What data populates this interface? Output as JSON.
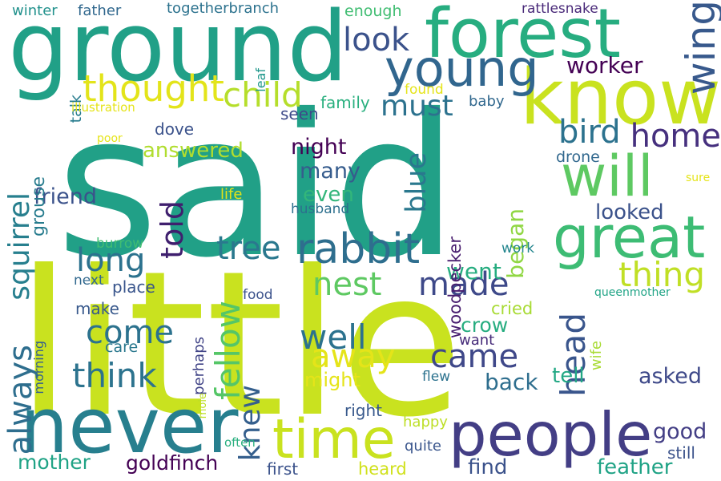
{
  "words": [
    {
      "text": "said",
      "color": "#21a087"
    },
    {
      "text": "little",
      "color": "#c9e21f"
    },
    {
      "text": "ground",
      "color": "#21a087"
    },
    {
      "text": "forest",
      "color": "#27ad80"
    },
    {
      "text": "know",
      "color": "#c9e21f"
    },
    {
      "text": "never",
      "color": "#277f8e"
    },
    {
      "text": "people",
      "color": "#433e85"
    },
    {
      "text": "young",
      "color": "#31668e"
    },
    {
      "text": "great",
      "color": "#3dbc74"
    },
    {
      "text": "will",
      "color": "#5ec962"
    },
    {
      "text": "time",
      "color": "#c9e21f"
    },
    {
      "text": "rabbit",
      "color": "#2e6e8e"
    },
    {
      "text": "wing",
      "color": "#38598c"
    },
    {
      "text": "look",
      "color": "#3b528b"
    },
    {
      "text": "thought",
      "color": "#e3e41a"
    },
    {
      "text": "child",
      "color": "#b5de2b"
    },
    {
      "text": "must",
      "color": "#2c728e"
    },
    {
      "text": "worker",
      "color": "#440154"
    },
    {
      "text": "bird",
      "color": "#2c728e"
    },
    {
      "text": "home",
      "color": "#46307e"
    },
    {
      "text": "squirrel",
      "color": "#277f8e"
    },
    {
      "text": "told",
      "color": "#3f1f6e"
    },
    {
      "text": "blue",
      "color": "#2a788e"
    },
    {
      "text": "tree",
      "color": "#2a788e"
    },
    {
      "text": "long",
      "color": "#2c728e"
    },
    {
      "text": "nest",
      "color": "#5ec962"
    },
    {
      "text": "made",
      "color": "#3e4989"
    },
    {
      "text": "thing",
      "color": "#c0df25"
    },
    {
      "text": "fellow",
      "color": "#55c667"
    },
    {
      "text": "come",
      "color": "#2c728e"
    },
    {
      "text": "well",
      "color": "#2c728e"
    },
    {
      "text": "away",
      "color": "#e5e419"
    },
    {
      "text": "came",
      "color": "#3f4889"
    },
    {
      "text": "head",
      "color": "#39558c"
    },
    {
      "text": "always",
      "color": "#2e6e8e"
    },
    {
      "text": "think",
      "color": "#2c738e"
    },
    {
      "text": "knew",
      "color": "#355f8d"
    },
    {
      "text": "went",
      "color": "#27ad80"
    },
    {
      "text": "answered",
      "color": "#b0dd2f"
    },
    {
      "text": "friend",
      "color": "#3b528b"
    },
    {
      "text": "night",
      "color": "#440154"
    },
    {
      "text": "many",
      "color": "#365c8d"
    },
    {
      "text": "even",
      "color": "#33b67a"
    },
    {
      "text": "looked",
      "color": "#3b528b"
    },
    {
      "text": "began",
      "color": "#90d743"
    },
    {
      "text": "woodpecker",
      "color": "#481d6f"
    },
    {
      "text": "grouse",
      "color": "#287c8e"
    },
    {
      "text": "dove",
      "color": "#3b528b"
    },
    {
      "text": "family",
      "color": "#2ab07f"
    },
    {
      "text": "seen",
      "color": "#3e4a89"
    },
    {
      "text": "found",
      "color": "#e5e419"
    },
    {
      "text": "drone",
      "color": "#31688e"
    },
    {
      "text": "baby",
      "color": "#31688e"
    },
    {
      "text": "talk",
      "color": "#287c8e"
    },
    {
      "text": "illustration",
      "color": "#e5e419"
    },
    {
      "text": "winter",
      "color": "#21918c"
    },
    {
      "text": "father",
      "color": "#31688e"
    },
    {
      "text": "togetherbranch",
      "color": "#2c728e"
    },
    {
      "text": "enough",
      "color": "#40bd72"
    },
    {
      "text": "rattlesnake",
      "color": "#482878"
    },
    {
      "text": "leaf",
      "color": "#1f978b"
    },
    {
      "text": "poor",
      "color": "#e5e419"
    },
    {
      "text": "life",
      "color": "#e5e419"
    },
    {
      "text": "husband",
      "color": "#2d708e"
    },
    {
      "text": "sure",
      "color": "#e5e419"
    },
    {
      "text": "burrow",
      "color": "#40bd72"
    },
    {
      "text": "work",
      "color": "#24868e"
    },
    {
      "text": "next",
      "color": "#31688e"
    },
    {
      "text": "place",
      "color": "#39558c"
    },
    {
      "text": "make",
      "color": "#38598c"
    },
    {
      "text": "food",
      "color": "#3b528b"
    },
    {
      "text": "queenmother",
      "color": "#20a486"
    },
    {
      "text": "morning",
      "color": "#35608d"
    },
    {
      "text": "perhaps",
      "color": "#414487"
    },
    {
      "text": "care",
      "color": "#2a788e"
    },
    {
      "text": "cried",
      "color": "#a8db34"
    },
    {
      "text": "crow",
      "color": "#27ad80"
    },
    {
      "text": "wife",
      "color": "#a8db34"
    },
    {
      "text": "want",
      "color": "#472c7a"
    },
    {
      "text": "might",
      "color": "#e5e419"
    },
    {
      "text": "mole",
      "color": "#bddf26"
    },
    {
      "text": "back",
      "color": "#2e6e8e"
    },
    {
      "text": "tell",
      "color": "#22a884"
    },
    {
      "text": "asked",
      "color": "#3e4989"
    },
    {
      "text": "flew",
      "color": "#2c728e"
    },
    {
      "text": "right",
      "color": "#38598c"
    },
    {
      "text": "happy",
      "color": "#bddf26"
    },
    {
      "text": "good",
      "color": "#433e85"
    },
    {
      "text": "still",
      "color": "#3b528b"
    },
    {
      "text": "often",
      "color": "#29af7f"
    },
    {
      "text": "quite",
      "color": "#39558c"
    },
    {
      "text": "mother",
      "color": "#20a386"
    },
    {
      "text": "goldfinch",
      "color": "#440154"
    },
    {
      "text": "first",
      "color": "#3b528b"
    },
    {
      "text": "heard",
      "color": "#d0e11c"
    },
    {
      "text": "find",
      "color": "#3b528b"
    },
    {
      "text": "feather",
      "color": "#20a386"
    }
  ]
}
